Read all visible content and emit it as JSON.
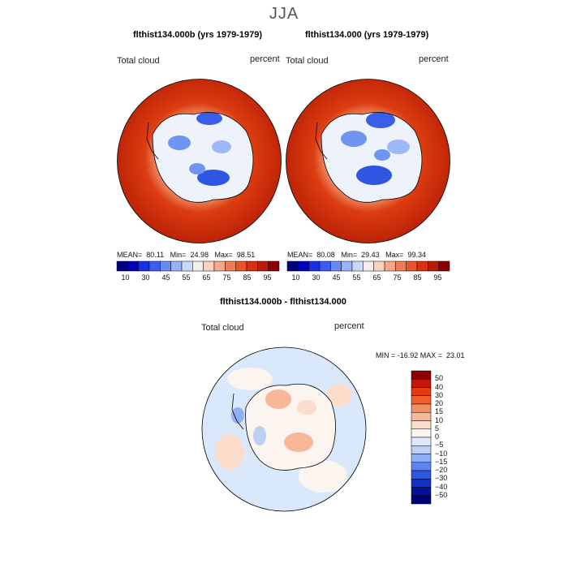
{
  "figure": {
    "season": "JJA",
    "diff_title": "flthist134.000b - flthist134.000"
  },
  "panels": [
    {
      "title": "flthist134.000b (yrs 1979-1979)",
      "field_label": "Total cloud",
      "units": "percent",
      "stats": {
        "mean_label": "MEAN=",
        "mean": "80.11",
        "min_label": "Min=",
        "min": "24.98",
        "max_label": "Max=",
        "max": "98.51"
      }
    },
    {
      "title": "flthist134.000 (yrs 1979-1979)",
      "field_label": "Total cloud",
      "units": "percent",
      "stats": {
        "mean_label": "MEAN=",
        "mean": "80.08",
        "min_label": "Min=",
        "min": "29.43",
        "max_label": "Max=",
        "max": "99.34"
      }
    }
  ],
  "diff_panel": {
    "field_label": "Total cloud",
    "units": "percent",
    "stats_text": "MIN = -16.92 MAX =  23.01"
  },
  "colorbar_main": {
    "colors": [
      "#00007f",
      "#0000b8",
      "#1a30e6",
      "#3b5cf0",
      "#6a8af5",
      "#9ab3f8",
      "#c8d9fb",
      "#f4efea",
      "#fbd2be",
      "#f6a98a",
      "#ef7c55",
      "#e8532b",
      "#d8300e",
      "#b81c04",
      "#8b0000"
    ],
    "tick_labels": [
      "10",
      "30",
      "45",
      "55",
      "65",
      "75",
      "85",
      "95"
    ]
  },
  "colorbar_diff": {
    "colors": [
      "#8b0000",
      "#c41505",
      "#e43a10",
      "#ef5f2c",
      "#f48e62",
      "#f8b799",
      "#fcdcca",
      "#fbf4ef",
      "#dfe9fb",
      "#bcd0f6",
      "#8fb0f2",
      "#5d84ec",
      "#2f56e2",
      "#1230c8",
      "#04129a",
      "#000070"
    ],
    "tick_labels": [
      "50",
      "40",
      "30",
      "20",
      "15",
      "10",
      "5",
      "0",
      "−5",
      "−10",
      "−15",
      "−20",
      "−30",
      "−40",
      "−50"
    ]
  },
  "colors": {
    "ocean_main": "#cf2d0b",
    "antarctica_main": "#e7edf8",
    "diff_background": "#d9e8fa"
  }
}
